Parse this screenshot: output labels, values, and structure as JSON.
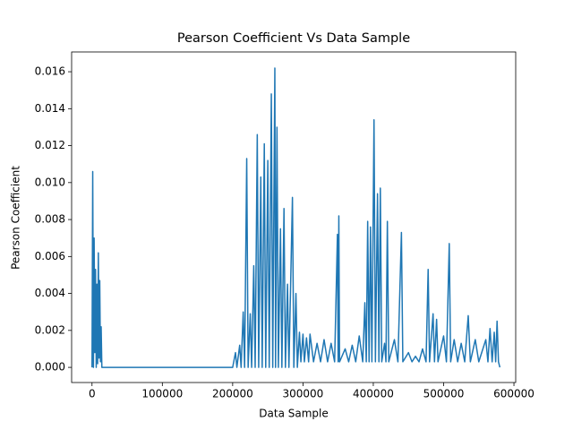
{
  "chart_data": {
    "type": "line",
    "title": "Pearson Coefficient Vs Data Sample",
    "x_label": "Data Sample",
    "y_label": "Pearson Coefficient",
    "xlim": [
      -29000,
      602500
    ],
    "ylim": [
      -0.00082,
      0.01707
    ],
    "xticks": [
      0,
      100000,
      200000,
      300000,
      400000,
      500000,
      600000
    ],
    "yticks": [
      {
        "value": 0,
        "label": "0.000"
      },
      {
        "value": 0.002,
        "label": "0.002"
      },
      {
        "value": 0.004,
        "label": "0.004"
      },
      {
        "value": 0.006,
        "label": "0.006"
      },
      {
        "value": 0.008,
        "label": "0.008"
      },
      {
        "value": 0.01,
        "label": "0.010"
      },
      {
        "value": 0.012,
        "label": "0.012"
      },
      {
        "value": 0.014,
        "label": "0.014"
      },
      {
        "value": 0.016,
        "label": "0.016"
      }
    ],
    "series": [
      {
        "color": "#1f77b4",
        "x": [
          0,
          1000,
          2000,
          3000,
          4000,
          5000,
          6000,
          7000,
          8000,
          9000,
          10000,
          11000,
          12000,
          13000,
          14000,
          15000,
          200000,
          204000,
          206000,
          210000,
          212000,
          215000,
          217000,
          220000,
          222000,
          225000,
          227000,
          230000,
          232000,
          235000,
          237000,
          240000,
          242000,
          245000,
          247000,
          250000,
          252000,
          255000,
          257000,
          260000,
          261000,
          263000,
          265000,
          268000,
          270000,
          273000,
          275000,
          278000,
          280000,
          285000,
          287000,
          290000,
          292000,
          295000,
          297000,
          300000,
          302000,
          305000,
          308000,
          310000,
          315000,
          320000,
          325000,
          330000,
          335000,
          340000,
          345000,
          349000,
          350000,
          351000,
          352000,
          360000,
          365000,
          370000,
          375000,
          380000,
          385000,
          388000,
          390000,
          392000,
          394000,
          396000,
          398000,
          401000,
          403000,
          406000,
          408000,
          410000,
          412000,
          416000,
          418000,
          420000,
          422000,
          430000,
          435000,
          440000,
          442000,
          450000,
          455000,
          460000,
          465000,
          470000,
          475000,
          478000,
          480000,
          485000,
          487000,
          490000,
          492000,
          500000,
          504000,
          508000,
          510000,
          515000,
          520000,
          525000,
          530000,
          535000,
          538000,
          545000,
          550000,
          560000,
          563000,
          566000,
          569000,
          572000,
          574000,
          576000,
          578000,
          580000
        ],
        "values": [
          0,
          0.0106,
          0,
          0.007,
          0.0008,
          0.0053,
          0,
          0.0045,
          0.0002,
          0.0062,
          0.0005,
          0.0047,
          0.0003,
          0.0022,
          0,
          0,
          0,
          0.0008,
          0,
          0.0012,
          0,
          0.003,
          0,
          0.0113,
          0,
          0.0029,
          0,
          0.0055,
          0,
          0.0126,
          0,
          0.0103,
          0,
          0.0121,
          0,
          0.0112,
          0,
          0.0148,
          0,
          0.0162,
          0,
          0.013,
          0,
          0.0075,
          0,
          0.0086,
          0,
          0.0045,
          0,
          0.0092,
          0,
          0.004,
          0,
          0.0019,
          0.0003,
          0.0018,
          0.0003,
          0.0016,
          0.0003,
          0.0018,
          0.0003,
          0.0013,
          0.0003,
          0.0015,
          0.0003,
          0.0013,
          0.0003,
          0.0072,
          0.0003,
          0.0082,
          0.0003,
          0.001,
          0.0003,
          0.0012,
          0.0003,
          0.0017,
          0.0003,
          0.0035,
          0.0003,
          0.0079,
          0.0003,
          0.0076,
          0.0003,
          0.0134,
          0.0003,
          0.0094,
          0.0003,
          0.0097,
          0.0003,
          0.0013,
          0.0003,
          0.0079,
          0.0003,
          0.0015,
          0.0003,
          0.0073,
          0.0003,
          0.0008,
          0.0003,
          0.0006,
          0.0003,
          0.001,
          0.0003,
          0.0053,
          0.0003,
          0.0029,
          0.0003,
          0.0026,
          0.0003,
          0.0017,
          0.0003,
          0.0067,
          0.0003,
          0.0015,
          0.0003,
          0.0013,
          0.0003,
          0.0028,
          0.0003,
          0.0015,
          0.0003,
          0.0015,
          0.0003,
          0.0021,
          0.0003,
          0.0019,
          0.0003,
          0.0025,
          0.0003,
          0
        ]
      }
    ]
  }
}
